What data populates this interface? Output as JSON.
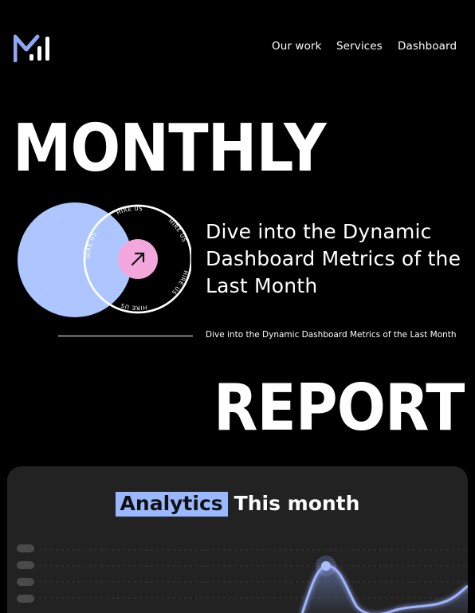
{
  "brand": {
    "logo": "M-bars-logo",
    "accent": "#8fa8f5"
  },
  "nav": {
    "items": [
      "Our work",
      "Services",
      "Dashboard"
    ]
  },
  "hero": {
    "word_top": "MONTHLY",
    "word_bottom": "REPORT",
    "headline": "Dive into the Dynamic Dashboard Metrics of the Last Month",
    "subline": "Dive into the Dynamic Dashboard Metrics of the Last Month",
    "badge": {
      "ring_text": "HIRE US",
      "icon": "arrow-up-right-icon",
      "circle_color": "#aec6ff",
      "pink": "#f4a7dc"
    }
  },
  "card": {
    "title_highlight": "Analytics",
    "title_rest": "This month",
    "highlight_color": "#9ab8ff"
  }
}
